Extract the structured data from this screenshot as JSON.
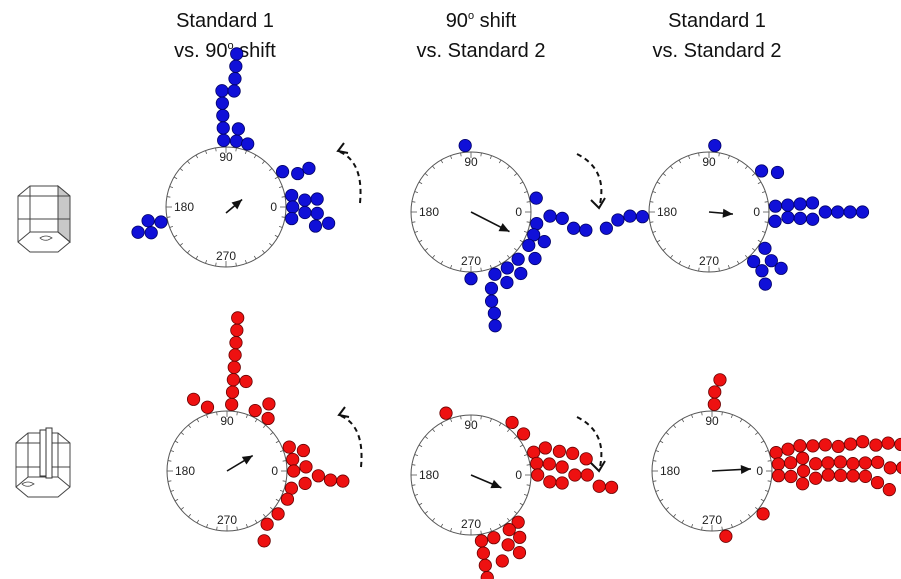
{
  "headers": [
    {
      "line1": {
        "pre": "Standard 1",
        "sup": "",
        "post": ""
      },
      "line2": {
        "pre": "vs. 90",
        "sup": "o",
        "post": " shift"
      }
    },
    {
      "line1": {
        "pre": "90",
        "sup": "o",
        "post": " shift"
      },
      "line2": {
        "pre": "vs. Standard 2",
        "sup": "",
        "post": ""
      }
    },
    {
      "line1": {
        "pre": "Standard 1",
        "sup": "",
        "post": ""
      },
      "line2": {
        "pre": "vs. Standard 2",
        "sup": "",
        "post": ""
      }
    }
  ],
  "dial_labels": [
    "90",
    "180",
    "0",
    "270"
  ],
  "colors": {
    "blue_series": "#1010d8",
    "red_series": "#ee1111",
    "dial": "#555555",
    "arrow": "#111111"
  },
  "chart_data": [
    {
      "type": "scatter",
      "row": "blue",
      "column": 1,
      "mean_vector": {
        "angle_deg": 40,
        "length": 0.35
      },
      "rotation_arrow": "counterclockwise",
      "points_deg": [
        92,
        92,
        92,
        92,
        92,
        86,
        86,
        86,
        86,
        81,
        81,
        71,
        32,
        25,
        25,
        10,
        5,
        5,
        0,
        -4,
        -4,
        -9,
        -10,
        -12,
        193,
        190,
        196,
        199
      ]
    },
    {
      "type": "scatter",
      "row": "blue",
      "column": 2,
      "mean_vector": {
        "angle_deg": -27,
        "length": 0.72
      },
      "rotation_arrow": "clockwise",
      "points_deg": [
        95,
        12,
        -10,
        -3,
        -4,
        -9,
        -9,
        -20,
        -22,
        -30,
        -36,
        -45,
        -51,
        -57,
        -63,
        -69,
        -75,
        -77,
        -77,
        -78,
        -90
      ]
    },
    {
      "type": "scatter",
      "row": "blue",
      "column": 3,
      "mean_vector": {
        "angle_deg": -5,
        "length": 0.4
      },
      "rotation_arrow": "none",
      "points_deg": [
        85,
        38,
        30,
        5,
        5,
        5,
        5,
        0,
        0,
        0,
        0,
        -4,
        -4,
        -4,
        -8,
        -33,
        -38,
        -38,
        -48,
        -48,
        -52,
        184,
        183,
        185,
        189
      ]
    },
    {
      "type": "scatter",
      "row": "red",
      "column": 1,
      "mean_vector": {
        "angle_deg": 31,
        "length": 0.5
      },
      "rotation_arrow": "counterclockwise",
      "points_deg": [
        86,
        86,
        86,
        86,
        86,
        86,
        86,
        86,
        78,
        65,
        58,
        52,
        21,
        15,
        10,
        3,
        0,
        -3,
        -5,
        -5,
        -9,
        -15,
        -25,
        -40,
        -53,
        -62,
        107,
        115
      ]
    },
    {
      "type": "scatter",
      "row": "red",
      "column": 2,
      "mean_vector": {
        "angle_deg": -23,
        "length": 0.55
      },
      "rotation_arrow": "clockwise",
      "points_deg": [
        112,
        52,
        38,
        20,
        20,
        15,
        12,
        10,
        8,
        8,
        5,
        0,
        0,
        0,
        -5,
        -5,
        -5,
        -5,
        -45,
        -52,
        -55,
        -58,
        -62,
        -70,
        -70,
        -81,
        -81,
        -81,
        -81,
        -81
      ]
    },
    {
      "type": "scatter",
      "row": "red",
      "column": 3,
      "mean_vector": {
        "angle_deg": 3,
        "length": 0.65
      },
      "rotation_arrow": "none",
      "points_deg": [
        88,
        88,
        85,
        16,
        16,
        16,
        14,
        13,
        11,
        11,
        11,
        9,
        9,
        8,
        8,
        6,
        6,
        4,
        4,
        4,
        3,
        3,
        3,
        1,
        1,
        1,
        0,
        0,
        0,
        0,
        0,
        0,
        0,
        0,
        -2,
        -2,
        -2,
        -2,
        -4,
        -4,
        -4,
        -4,
        -6,
        -8,
        -40,
        -78
      ]
    }
  ]
}
